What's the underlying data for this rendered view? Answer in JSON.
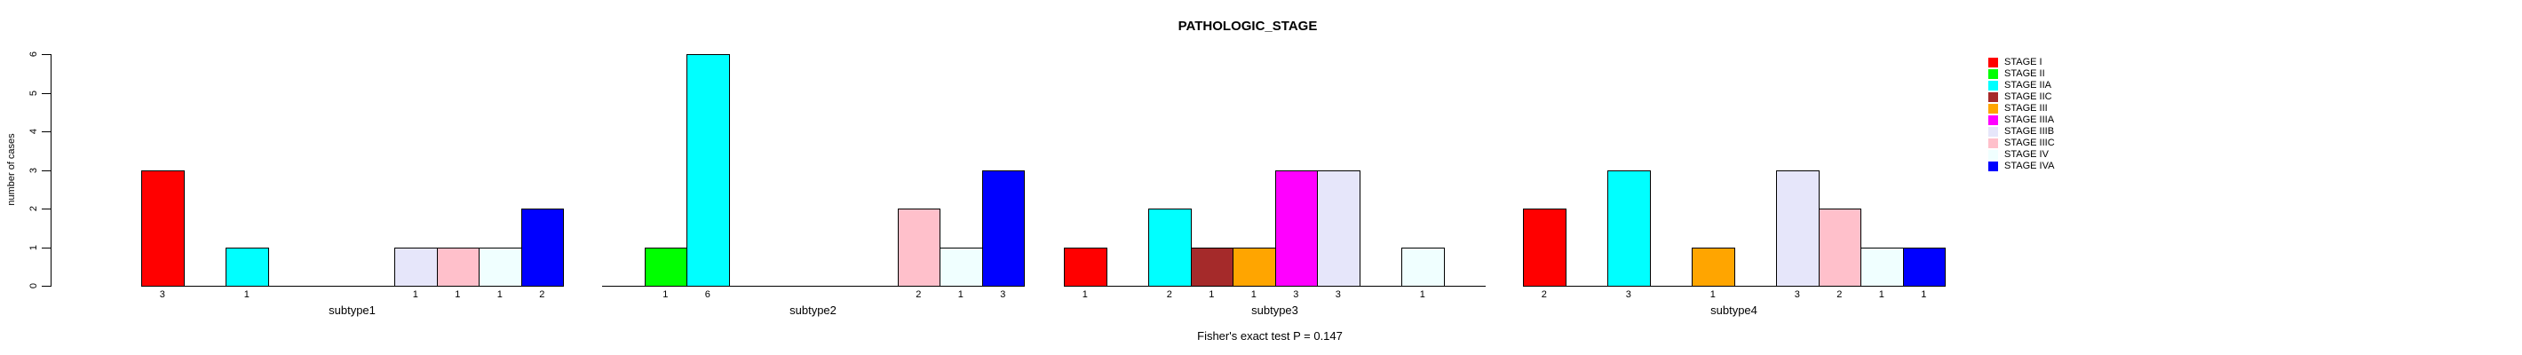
{
  "chart_data": {
    "type": "bar",
    "title": "PATHOLOGIC_STAGE",
    "xlabel": "",
    "ylabel": "number of cases",
    "ylim": [
      0,
      6
    ],
    "yticks": [
      0,
      1,
      2,
      3,
      4,
      5,
      6
    ],
    "grid": false,
    "legend_position": "right",
    "annotation": "Fisher's exact test P = 0.147",
    "categories": [
      "STAGE I",
      "STAGE II",
      "STAGE IIA",
      "STAGE IIC",
      "STAGE III",
      "STAGE IIIA",
      "STAGE IIIB",
      "STAGE IIIC",
      "STAGE IV",
      "STAGE IVA"
    ],
    "colors": [
      "#FF0000",
      "#00FF00",
      "#00FFFF",
      "#A52A2A",
      "#FFA500",
      "#FF00FF",
      "#E6E6FA",
      "#FFC0CB",
      "#F0FFFF",
      "#0000FF"
    ],
    "series": [
      {
        "name": "subtype1",
        "values": [
          3,
          0,
          1,
          0,
          0,
          0,
          1,
          1,
          1,
          2
        ]
      },
      {
        "name": "subtype2",
        "values": [
          0,
          1,
          6,
          0,
          0,
          0,
          0,
          2,
          1,
          3
        ]
      },
      {
        "name": "subtype3",
        "values": [
          1,
          0,
          2,
          1,
          1,
          3,
          3,
          0,
          1,
          0
        ]
      },
      {
        "name": "subtype4",
        "values": [
          2,
          0,
          3,
          0,
          1,
          0,
          3,
          2,
          1,
          1
        ]
      }
    ]
  }
}
